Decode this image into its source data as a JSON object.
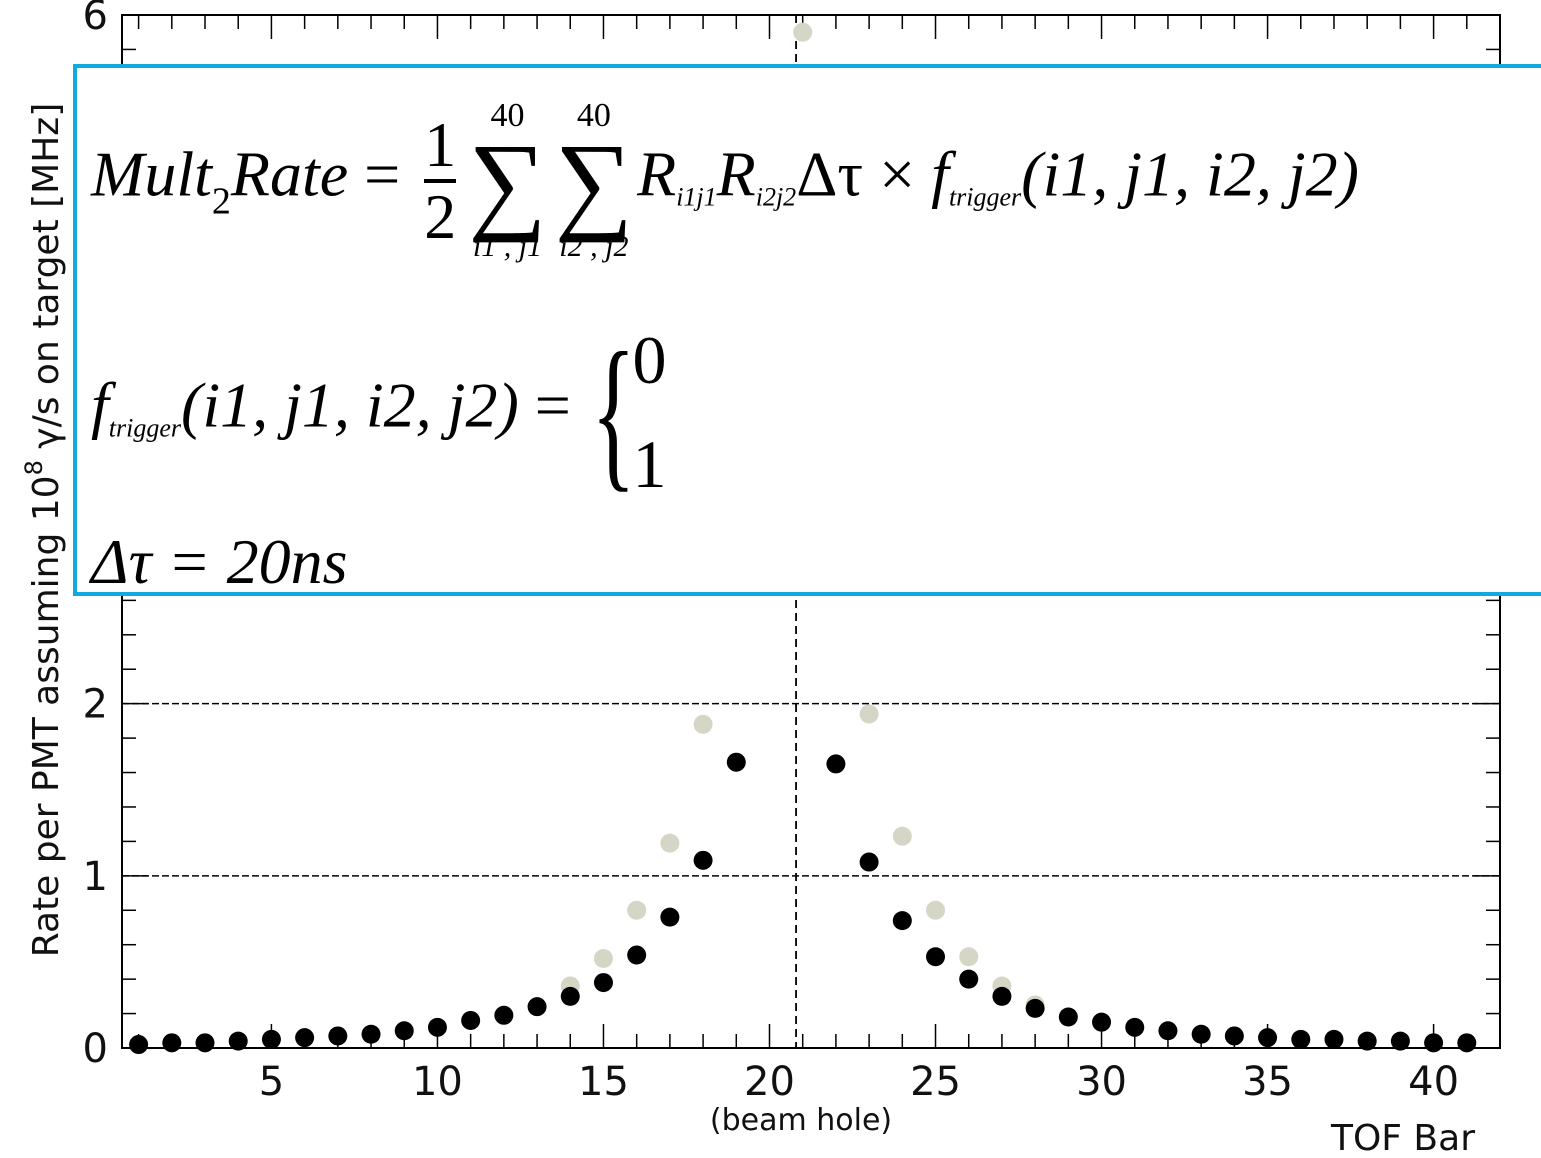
{
  "chart_data": {
    "type": "scatter",
    "ylabel": "Rate per PMT assuming 10",
    "ylabel_sup": "8",
    "ylabel_rest": " γ/s on target [MHz]",
    "xlabel": "TOF Bar",
    "annotation": "(beam hole)",
    "annotation_x": 20.8,
    "xlim": [
      0.5,
      42
    ],
    "ylim": [
      0,
      6
    ],
    "x_ticks": [
      5,
      10,
      15,
      20,
      25,
      30,
      35,
      40
    ],
    "y_ticks": [
      0,
      1,
      2,
      6
    ],
    "y_gridlines": [
      1,
      2
    ],
    "series": [
      {
        "color": "#d6d6c6",
        "x": [
          14,
          15,
          16,
          17,
          18,
          21,
          23,
          24,
          25,
          26,
          27,
          28
        ],
        "y": [
          0.36,
          0.52,
          0.8,
          1.19,
          1.88,
          5.9,
          1.94,
          1.23,
          0.8,
          0.53,
          0.36,
          0.25
        ]
      },
      {
        "color": "#000000",
        "x": [
          1,
          2,
          3,
          4,
          5,
          6,
          7,
          8,
          9,
          10,
          11,
          12,
          13,
          14,
          15,
          16,
          17,
          18,
          19,
          22,
          23,
          24,
          25,
          26,
          27,
          28,
          29,
          30,
          31,
          32,
          33,
          34,
          35,
          36,
          37,
          38,
          39,
          40,
          41
        ],
        "y": [
          0.02,
          0.03,
          0.03,
          0.04,
          0.05,
          0.06,
          0.07,
          0.08,
          0.1,
          0.12,
          0.16,
          0.19,
          0.24,
          0.3,
          0.38,
          0.54,
          0.76,
          1.09,
          1.66,
          1.65,
          1.08,
          0.74,
          0.53,
          0.4,
          0.3,
          0.23,
          0.18,
          0.15,
          0.12,
          0.1,
          0.08,
          0.07,
          0.06,
          0.05,
          0.05,
          0.04,
          0.04,
          0.03,
          0.03
        ]
      }
    ]
  },
  "formula": {
    "line1": {
      "lhs_a": "Mult",
      "lhs_sub": "2",
      "lhs_b": "Rate",
      "eq": " = ",
      "frac_num": "1",
      "frac_den": "2",
      "sum1_upper": "40",
      "sum1_lower": "i1 , j1",
      "sum2_upper": "40",
      "sum2_lower": "i2 , j2",
      "r1": "R",
      "r1_sub": "i1j1",
      "r2": "R",
      "r2_sub": "i2j2",
      "dt": "Δτ × ",
      "f": "f",
      "f_sub": "trigger",
      "args": "(i1, j1, i2, j2)"
    },
    "line2": {
      "f": "f",
      "f_sub": "trigger",
      "args": "(i1, j1, i2, j2)",
      "eq": " = ",
      "case0": "0",
      "case1": "1"
    },
    "line3": {
      "text": "Δτ = 20ns"
    }
  }
}
